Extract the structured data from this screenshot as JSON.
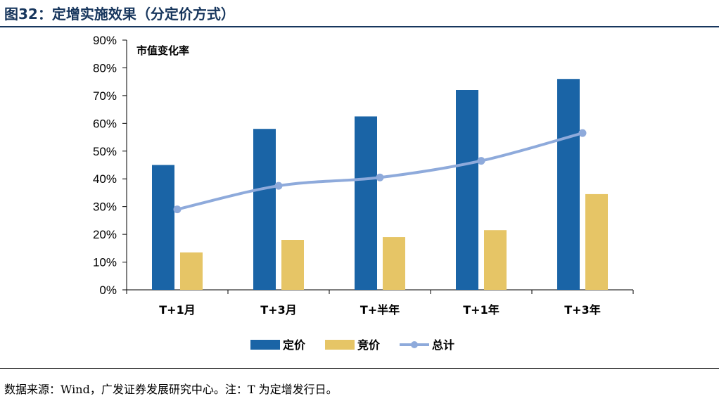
{
  "figure": {
    "title": "图32：定增实施效果（分定价方式）",
    "source": "数据来源：Wind，广发证券发展研究中心。注：T 为定增发行日。"
  },
  "chart_data": {
    "type": "bar",
    "inner_label": "市值变化率",
    "categories": [
      "T+1月",
      "T+3月",
      "T+半年",
      "T+1年",
      "T+3年"
    ],
    "ylim": [
      0,
      90
    ],
    "yticks": [
      "0%",
      "10%",
      "20%",
      "30%",
      "40%",
      "50%",
      "60%",
      "70%",
      "80%",
      "90%"
    ],
    "grid": false,
    "legend_position": "bottom",
    "series": [
      {
        "name": "定价",
        "type": "bar",
        "color": "#1a64a6",
        "values": [
          45,
          58,
          62.5,
          72,
          76
        ]
      },
      {
        "name": "竞价",
        "type": "bar",
        "color": "#e6c566",
        "values": [
          13.5,
          18,
          19,
          21.5,
          34.5
        ]
      },
      {
        "name": "总计",
        "type": "line",
        "color": "#8eaadb",
        "values": [
          29,
          37.5,
          40.5,
          46.5,
          56.5
        ]
      }
    ]
  }
}
